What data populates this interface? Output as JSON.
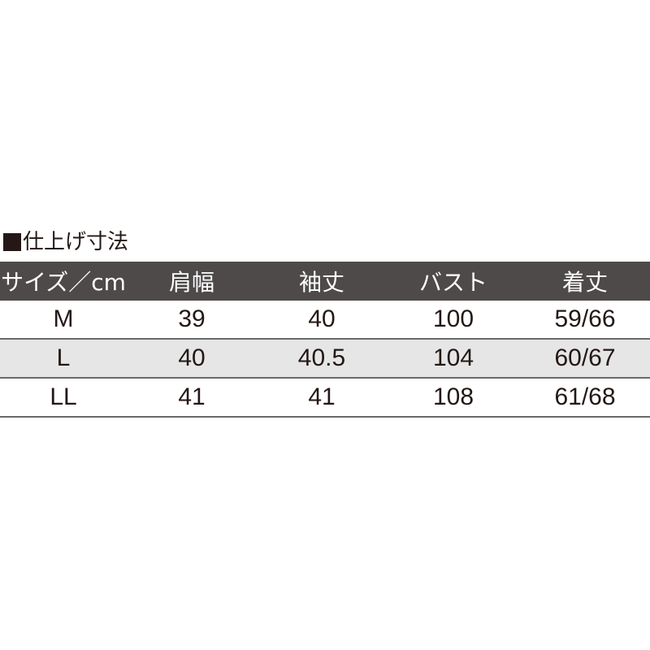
{
  "title": "仕上げ寸法",
  "table": {
    "headers": [
      "サイズ／cm",
      "肩幅",
      "袖丈",
      "バスト",
      "着丈"
    ],
    "rows": [
      [
        "M",
        "39",
        "40",
        "100",
        "59/66"
      ],
      [
        "L",
        "40",
        "40.5",
        "104",
        "60/67"
      ],
      [
        "LL",
        "41",
        "41",
        "108",
        "61/68"
      ]
    ]
  },
  "colors": {
    "header_bg": "#4e4a4a",
    "alt_row_bg": "#e6e6e6",
    "text": "#231815"
  }
}
